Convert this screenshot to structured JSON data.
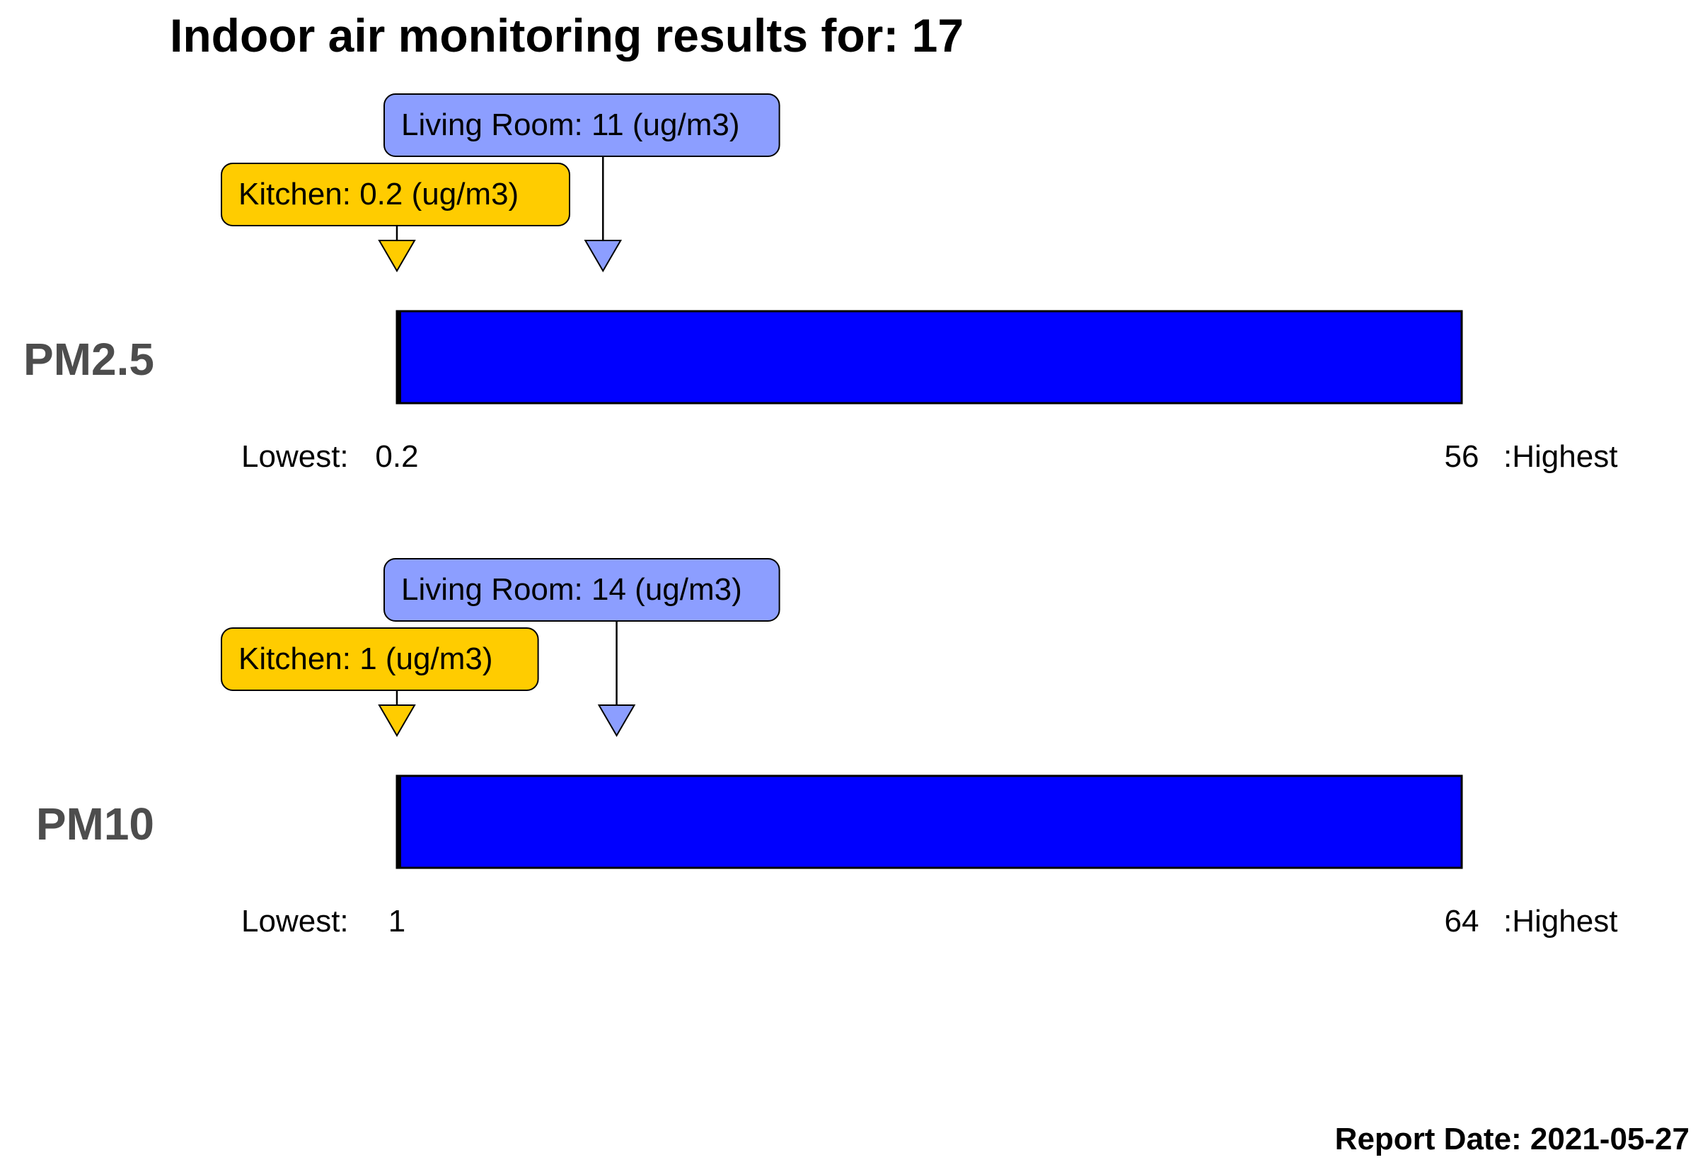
{
  "title": "Indoor air monitoring results for: 17",
  "footer": {
    "label": "Report Date:",
    "date": "2021-05-27",
    "text": "Report Date: 2021-05-27"
  },
  "colors": {
    "bar_fill": "#0000ff",
    "living_room": "#8c9eff",
    "kitchen": "#ffcc00",
    "metric_label": "#4d4d4d"
  },
  "chart_data": [
    {
      "type": "bar",
      "metric": "PM2.5",
      "unit": "ug/m3",
      "range": [
        0.2,
        56
      ],
      "lowest_label": "Lowest:",
      "lowest_value": "0.2",
      "highest_label": ":Highest",
      "highest_value": "56",
      "markers": [
        {
          "room": "Living Room",
          "value": 11,
          "text": "Living Room: 11 (ug/m3)",
          "color": "#8c9eff"
        },
        {
          "room": "Kitchen",
          "value": 0.2,
          "text": "Kitchen: 0.2 (ug/m3)",
          "color": "#ffcc00"
        }
      ]
    },
    {
      "type": "bar",
      "metric": "PM10",
      "unit": "ug/m3",
      "range": [
        1,
        64
      ],
      "lowest_label": "Lowest:",
      "lowest_value": "1",
      "highest_label": ":Highest",
      "highest_value": "64",
      "markers": [
        {
          "room": "Living Room",
          "value": 14,
          "text": "Living Room: 14 (ug/m3)",
          "color": "#8c9eff"
        },
        {
          "room": "Kitchen",
          "value": 1,
          "text": "Kitchen: 1 (ug/m3)",
          "color": "#ffcc00"
        }
      ]
    }
  ]
}
